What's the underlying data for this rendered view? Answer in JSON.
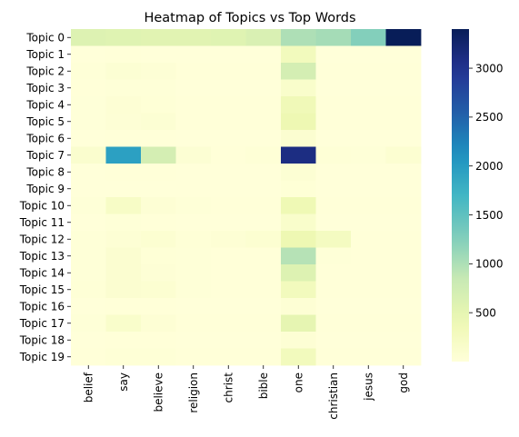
{
  "chart_data": {
    "type": "heatmap",
    "title": "Heatmap of Topics vs Top Words",
    "xlabel": "",
    "ylabel": "",
    "x": [
      "belief",
      "say",
      "believe",
      "religion",
      "christ",
      "bible",
      "one",
      "christian",
      "jesus",
      "god"
    ],
    "y": [
      "Topic 0",
      "Topic 1",
      "Topic 2",
      "Topic 3",
      "Topic 4",
      "Topic 5",
      "Topic 6",
      "Topic 7",
      "Topic 8",
      "Topic 9",
      "Topic 10",
      "Topic 11",
      "Topic 12",
      "Topic 13",
      "Topic 14",
      "Topic 15",
      "Topic 16",
      "Topic 17",
      "Topic 18",
      "Topic 19"
    ],
    "values": [
      [
        600,
        580,
        560,
        560,
        580,
        650,
        1000,
        1050,
        1250,
        3400
      ],
      [
        5,
        10,
        5,
        5,
        5,
        5,
        300,
        5,
        5,
        5
      ],
      [
        20,
        60,
        40,
        10,
        10,
        10,
        700,
        10,
        10,
        10
      ],
      [
        10,
        20,
        20,
        5,
        5,
        5,
        150,
        5,
        5,
        5
      ],
      [
        15,
        50,
        30,
        10,
        10,
        10,
        350,
        10,
        10,
        10
      ],
      [
        15,
        40,
        60,
        10,
        10,
        10,
        400,
        10,
        10,
        10
      ],
      [
        5,
        10,
        10,
        5,
        5,
        5,
        100,
        5,
        5,
        5
      ],
      [
        120,
        1950,
        700,
        60,
        10,
        30,
        3100,
        30,
        20,
        80
      ],
      [
        5,
        10,
        10,
        5,
        5,
        5,
        60,
        5,
        5,
        5
      ],
      [
        5,
        5,
        5,
        5,
        5,
        5,
        30,
        5,
        5,
        5
      ],
      [
        20,
        200,
        50,
        20,
        10,
        10,
        380,
        10,
        10,
        10
      ],
      [
        5,
        20,
        10,
        5,
        5,
        5,
        150,
        5,
        5,
        5
      ],
      [
        20,
        50,
        80,
        30,
        50,
        80,
        400,
        250,
        10,
        10
      ],
      [
        20,
        100,
        30,
        20,
        10,
        10,
        950,
        20,
        10,
        10
      ],
      [
        20,
        100,
        40,
        20,
        10,
        10,
        600,
        10,
        10,
        10
      ],
      [
        30,
        100,
        80,
        20,
        10,
        10,
        300,
        10,
        10,
        10
      ],
      [
        5,
        10,
        10,
        5,
        5,
        5,
        50,
        5,
        5,
        5
      ],
      [
        20,
        150,
        50,
        10,
        10,
        10,
        500,
        10,
        10,
        10
      ],
      [
        5,
        10,
        10,
        5,
        5,
        5,
        50,
        5,
        5,
        5
      ],
      [
        10,
        30,
        30,
        10,
        10,
        10,
        300,
        10,
        10,
        10
      ]
    ],
    "colorbar": {
      "colormap": "YlGnBu",
      "range": [
        0,
        3400
      ],
      "ticks": [
        500,
        1000,
        1500,
        2000,
        2500,
        3000
      ]
    },
    "grid": false,
    "legend": "colorbar-right"
  }
}
